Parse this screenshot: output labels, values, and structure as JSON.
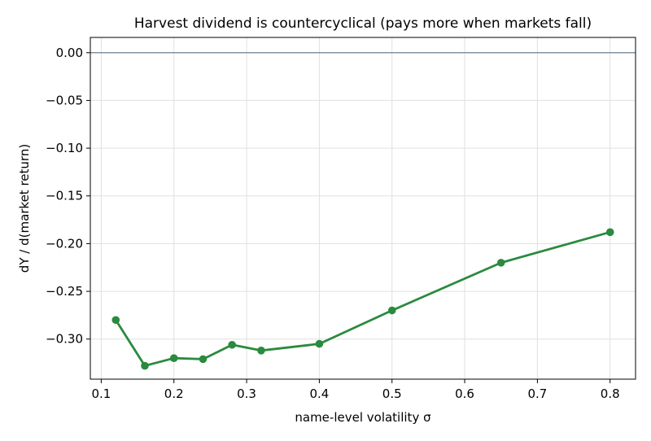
{
  "chart_data": {
    "type": "line",
    "title": "Harvest dividend is countercyclical (pays more when markets fall)",
    "xlabel": "name-level volatility  σ",
    "ylabel": "dY / d(market return)",
    "xlim": [
      0.085,
      0.835
    ],
    "ylim": [
      -0.342,
      0.016
    ],
    "x_ticks": [
      0.1,
      0.2,
      0.3,
      0.4,
      0.5,
      0.6,
      0.7,
      0.8
    ],
    "x_tick_labels": [
      "0.1",
      "0.2",
      "0.3",
      "0.4",
      "0.5",
      "0.6",
      "0.7",
      "0.8"
    ],
    "y_ticks": [
      0.0,
      -0.05,
      -0.1,
      -0.15,
      -0.2,
      -0.25,
      -0.3
    ],
    "y_tick_labels": [
      "0.00",
      "−0.05",
      "−0.10",
      "−0.15",
      "−0.20",
      "−0.25",
      "−0.30"
    ],
    "grid": true,
    "reference_line": {
      "y": 0.0,
      "color": "#708090"
    },
    "series": [
      {
        "color": "#2a8a3e",
        "marker": "circle",
        "x": [
          0.12,
          0.16,
          0.2,
          0.24,
          0.28,
          0.32,
          0.4,
          0.5,
          0.65,
          0.8
        ],
        "y": [
          -0.28,
          -0.328,
          -0.32,
          -0.321,
          -0.306,
          -0.312,
          -0.305,
          -0.27,
          -0.22,
          -0.188
        ]
      }
    ]
  }
}
